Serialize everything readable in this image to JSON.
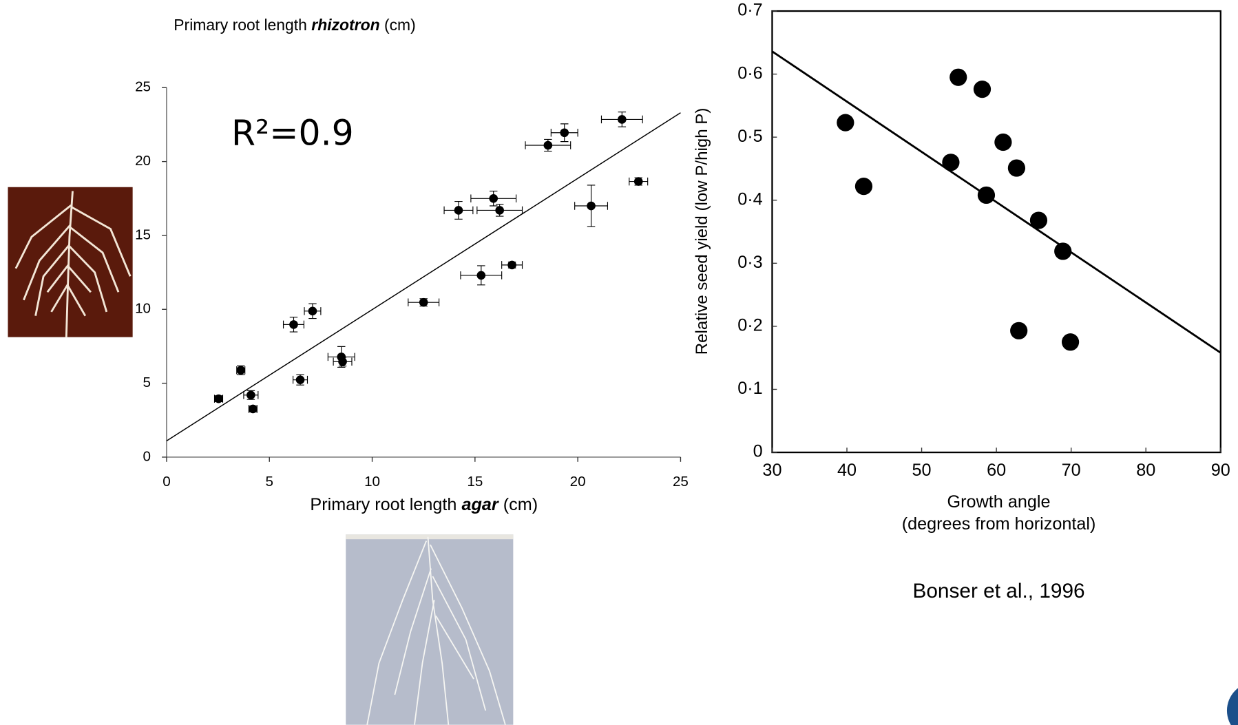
{
  "chart_data": [
    {
      "type": "scatter",
      "title": [
        "Primary root length ",
        "rhizotron",
        " (cm)"
      ],
      "xlabel": [
        "Primary root length ",
        "agar",
        " (cm)"
      ],
      "annotation": "R²=0.9",
      "xlim": [
        0,
        25
      ],
      "ylim": [
        0,
        25
      ],
      "xticks": [
        0,
        5,
        10,
        15,
        20,
        25
      ],
      "yticks": [
        0,
        5,
        10,
        15,
        20,
        25
      ],
      "trendline": {
        "x": [
          0,
          25
        ],
        "y": [
          1.1,
          23.3
        ]
      },
      "series": [
        {
          "color": "#000000",
          "x": [
            2.53,
            3.61,
            4.1,
            4.2,
            6.18,
            6.5,
            7.1,
            8.5,
            8.56,
            12.5,
            14.2,
            15.3,
            15.9,
            16.2,
            16.8,
            18.55,
            19.35,
            20.65,
            22.15,
            22.95
          ],
          "values": [
            3.95,
            5.88,
            4.2,
            3.26,
            8.97,
            5.23,
            9.88,
            6.78,
            6.46,
            10.47,
            16.7,
            12.3,
            17.5,
            16.7,
            13.0,
            21.1,
            21.95,
            17.0,
            22.85,
            18.65
          ],
          "xerr": [
            0.2,
            0.2,
            0.35,
            0.2,
            0.5,
            0.35,
            0.4,
            0.65,
            0.45,
            0.75,
            0.7,
            1.0,
            1.1,
            1.1,
            0.5,
            1.1,
            0.65,
            0.8,
            1.0,
            0.45
          ],
          "yerr": [
            0.2,
            0.3,
            0.3,
            0.2,
            0.5,
            0.35,
            0.5,
            0.7,
            0.3,
            0.25,
            0.6,
            0.65,
            0.5,
            0.4,
            0.2,
            0.4,
            0.6,
            1.4,
            0.5,
            0.25
          ]
        }
      ]
    },
    {
      "type": "scatter",
      "ylabel": "Relative seed yield (low P/high P)",
      "xlabel": [
        "Growth angle",
        "(degrees from horizontal)"
      ],
      "source": "Bonser et al., 1996",
      "xlim": [
        30,
        90
      ],
      "ylim": [
        0,
        0.7
      ],
      "xticks": [
        30,
        40,
        50,
        60,
        70,
        80,
        90
      ],
      "yticks": [
        0,
        {
          "value": 0.1,
          "label": "0·1"
        },
        {
          "value": 0.2,
          "label": "0·2"
        },
        {
          "value": 0.3,
          "label": "0·3"
        },
        {
          "value": 0.4,
          "label": "0·4"
        },
        {
          "value": 0.5,
          "label": "0·5"
        },
        {
          "value": 0.6,
          "label": "0·6"
        },
        {
          "value": 0.7,
          "label": "0·7"
        }
      ],
      "trendline": {
        "x": [
          30,
          90
        ],
        "y": [
          0.636,
          0.158
        ]
      },
      "series": [
        {
          "color": "#000000",
          "x": [
            39.8,
            42.25,
            54.9,
            58.1,
            53.9,
            58.65,
            60.9,
            62.7,
            65.65,
            68.9,
            63.0,
            69.9
          ],
          "values": [
            0.523,
            0.422,
            0.595,
            0.576,
            0.46,
            0.408,
            0.492,
            0.451,
            0.368,
            0.319,
            0.193,
            0.175
          ]
        }
      ]
    }
  ]
}
